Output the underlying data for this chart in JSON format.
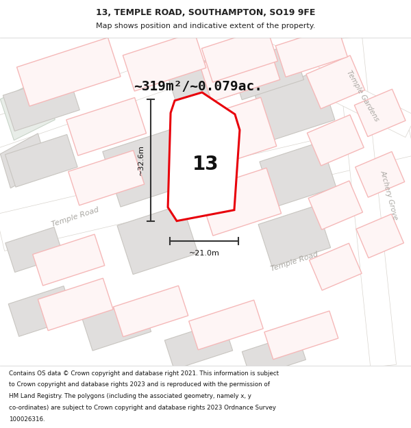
{
  "title_line1": "13, TEMPLE ROAD, SOUTHAMPTON, SO19 9FE",
  "title_line2": "Map shows position and indicative extent of the property.",
  "area_text": "~319m²/~0.079ac.",
  "dim_width": "~21.0m",
  "dim_height": "~32.6m",
  "number_label": "13",
  "footer_lines": [
    "Contains OS data © Crown copyright and database right 2021. This information is subject",
    "to Crown copyright and database rights 2023 and is reproduced with the permission of",
    "HM Land Registry. The polygons (including the associated geometry, namely x, y",
    "co-ordinates) are subject to Crown copyright and database rights 2023 Ordnance Survey",
    "100026316."
  ],
  "map_bg": "#f7f6f4",
  "road_bg": "#ffffff",
  "building_fill": "#e0dedd",
  "building_edge": "#c8c5c0",
  "pink_fill": "#fef5f5",
  "pink_edge": "#f5b8b8",
  "green_fill": "#e8ede8",
  "green_edge": "#c8d4c8",
  "red_edge": "#e8000a",
  "prop_fill": "#ffffff",
  "road_label_color": "#aaa8a3",
  "title_font": 9,
  "subtitle_font": 8,
  "area_font": 14,
  "dim_font": 8,
  "prop_num_font": 20,
  "road_font": 8,
  "road_label_rot1": 18,
  "road_label_rot2": -60,
  "road_label_rot3": -75
}
